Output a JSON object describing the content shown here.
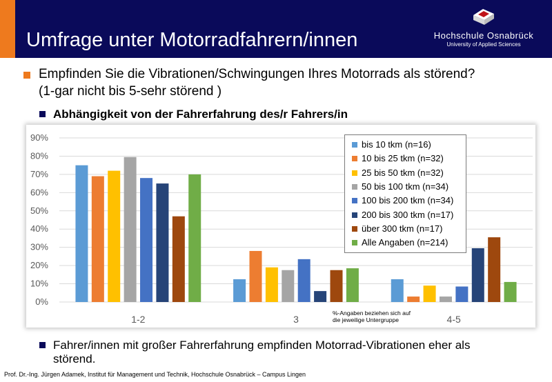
{
  "slide": {
    "title": "Umfrage unter Motorradfahrern/innen",
    "logo": {
      "name": "Hochschule Osnabrück",
      "subtitle": "University of Applied Sciences"
    },
    "question_line1": "Empfinden Sie die Vibrationen/Schwingungen Ihres Motorrads als störend?",
    "question_line2": "(1-gar nicht bis 5-sehr störend )",
    "sub_bullet": "Abhängigkeit von der Fahrerfahrung des/r Fahrers/in",
    "note_line1": "%-Angaben beziehen sich auf",
    "note_line2": "die jeweilige Untergruppe",
    "conclusion_line1": "Fahrer/innen mit großer Fahrerfahrung empfinden Motorrad-Vibrationen eher als",
    "conclusion_line2": "störend.",
    "footer": "Prof. Dr.-Ing. Jürgen Adamek,  Institut für Management und Technik, Hochschule Osnabrück – Campus Lingen"
  },
  "colors": {
    "header": "#0a0a5a",
    "accent": "#ee7a1e"
  },
  "chart_data": {
    "type": "bar",
    "categories": [
      "1-2",
      "3",
      "4-5"
    ],
    "ylim": [
      0,
      90
    ],
    "yticks": [
      0,
      10,
      20,
      30,
      40,
      50,
      60,
      70,
      80,
      90
    ],
    "ytick_labels": [
      "0%",
      "10%",
      "20%",
      "30%",
      "40%",
      "50%",
      "60%",
      "70%",
      "80%",
      "90%"
    ],
    "grid": "horizontal",
    "legend_position": "top-right",
    "series": [
      {
        "name": "bis 10 tkm (n=16)",
        "color": "#5b9bd5",
        "values": [
          75,
          12.5,
          12.5
        ]
      },
      {
        "name": "10 bis 25 tkm (n=32)",
        "color": "#ed7d31",
        "values": [
          69,
          28,
          3
        ]
      },
      {
        "name": "25 bis 50 tkm (n=32)",
        "color": "#ffc000",
        "values": [
          72,
          19,
          9
        ]
      },
      {
        "name": "50 bis 100 tkm (n=34)",
        "color": "#a5a5a5",
        "values": [
          79.5,
          17.5,
          3
        ]
      },
      {
        "name": "100 bis 200 tkm (n=34)",
        "color": "#4472c4",
        "values": [
          68,
          23.5,
          8.5
        ]
      },
      {
        "name": "200 bis 300 tkm (n=17)",
        "color": "#264478",
        "values": [
          65,
          6,
          29.5
        ]
      },
      {
        "name": "über 300 tkm (n=17)",
        "color": "#9e480e",
        "values": [
          47,
          17.5,
          35.5
        ]
      },
      {
        "name": "Alle Angaben (n=214)",
        "color": "#70ad47",
        "values": [
          70,
          18.5,
          11
        ]
      }
    ]
  }
}
